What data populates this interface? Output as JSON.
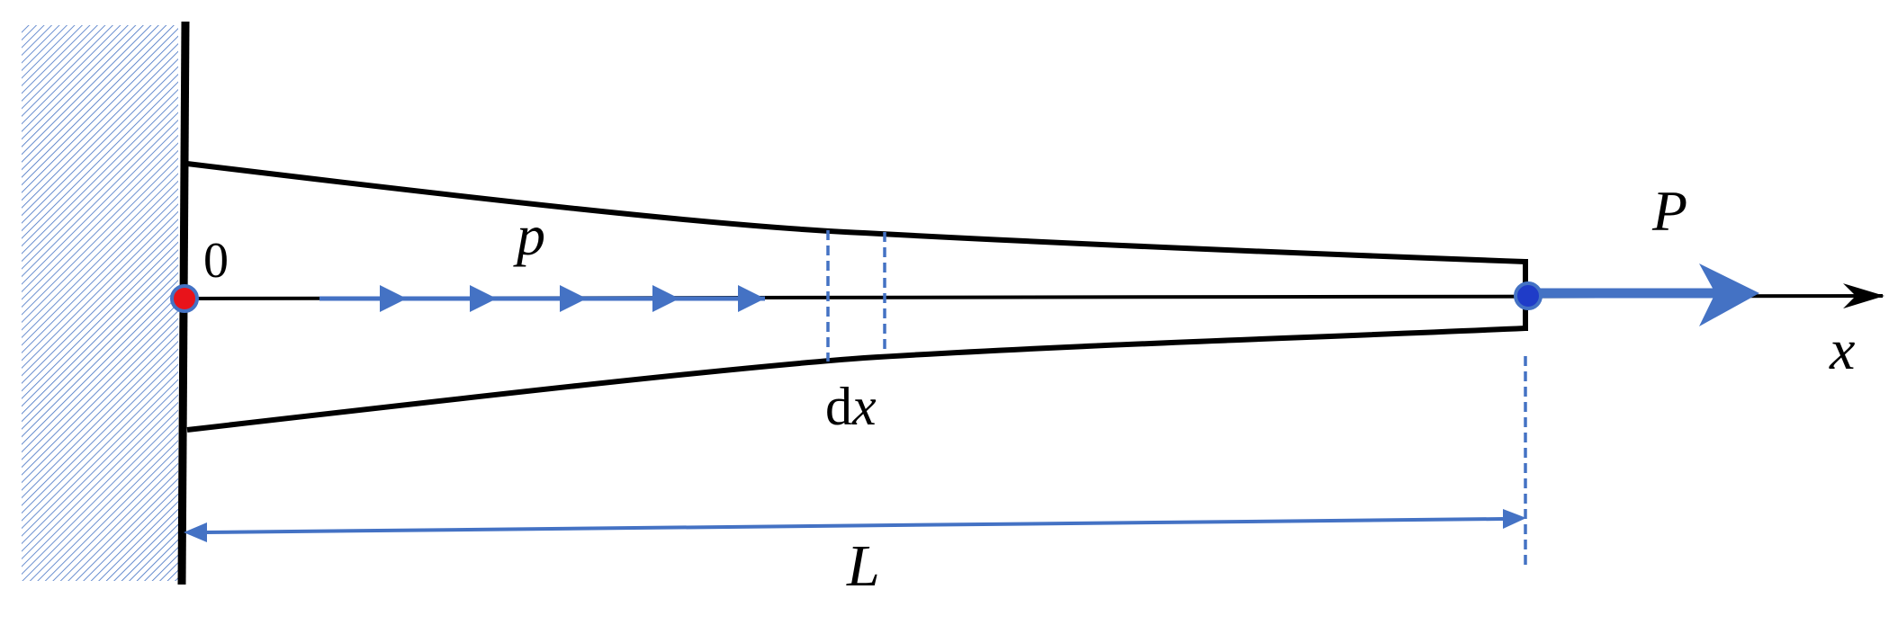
{
  "labels": {
    "origin": "0",
    "distributed_load": "p",
    "point_load": "P",
    "axis": "x",
    "element_d": "d",
    "element_x": "x",
    "length": "L"
  },
  "colors": {
    "stroke": "#000000",
    "accent": "#4472c4",
    "hatch": "#4472c4",
    "origin_dot": "#e8131a",
    "end_dot": "#1f3cc8"
  },
  "icons": {
    "fixed_support": "hatched-wall",
    "load_arrow": "triangle-arrowhead"
  }
}
